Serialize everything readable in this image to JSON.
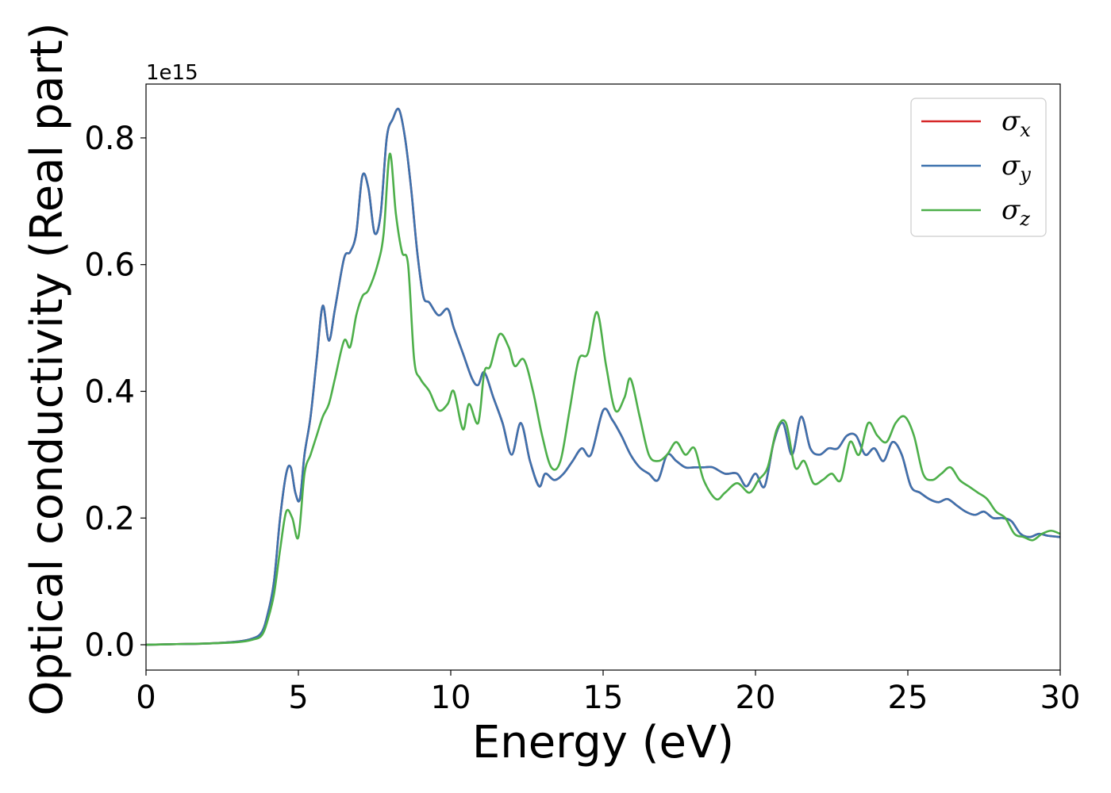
{
  "chart_data": {
    "type": "line",
    "title": "",
    "xlabel": "Energy (eV)",
    "ylabel": "Optical conductivity (Real part)",
    "y_offset_text": "1e15",
    "xlim": [
      0,
      30
    ],
    "ylim": [
      -0.04,
      0.885
    ],
    "xticks": [
      0,
      5,
      10,
      15,
      20,
      25,
      30
    ],
    "yticks": [
      0.0,
      0.2,
      0.4,
      0.6,
      0.8
    ],
    "xtick_labels": [
      "0",
      "5",
      "10",
      "15",
      "20",
      "25",
      "30"
    ],
    "ytick_labels": [
      "0.0",
      "0.2",
      "0.4",
      "0.6",
      "0.8"
    ],
    "grid": false,
    "legend_position": "top-right",
    "series": [
      {
        "name": "σx",
        "symbol": "σ",
        "subscript": "x",
        "color": "#d62728",
        "x": [
          0,
          1,
          2,
          3,
          3.5,
          3.8,
          4.0,
          4.2,
          4.4,
          4.6,
          4.75,
          4.9,
          5.05,
          5.2,
          5.4,
          5.6,
          5.8,
          6.0,
          6.2,
          6.5,
          6.7,
          6.9,
          7.1,
          7.3,
          7.5,
          7.7,
          7.9,
          8.1,
          8.3,
          8.5,
          8.7,
          8.9,
          9.1,
          9.3,
          9.6,
          9.9,
          10.1,
          10.4,
          10.7,
          10.9,
          11.1,
          11.4,
          11.7,
          12.0,
          12.3,
          12.6,
          12.9,
          13.1,
          13.4,
          13.7,
          14.0,
          14.3,
          14.6,
          15.0,
          15.3,
          15.6,
          15.9,
          16.2,
          16.5,
          16.8,
          17.1,
          17.4,
          17.7,
          18.0,
          18.3,
          18.6,
          19.0,
          19.4,
          19.7,
          20.0,
          20.3,
          20.6,
          20.9,
          21.2,
          21.5,
          21.8,
          22.1,
          22.4,
          22.7,
          23.0,
          23.3,
          23.6,
          23.9,
          24.2,
          24.5,
          24.8,
          25.1,
          25.4,
          25.7,
          26.0,
          26.3,
          26.6,
          26.9,
          27.2,
          27.5,
          27.8,
          28.1,
          28.4,
          28.7,
          29.0,
          29.3,
          29.6,
          30
        ],
        "y": [
          0,
          0.001,
          0.002,
          0.005,
          0.01,
          0.02,
          0.05,
          0.1,
          0.2,
          0.27,
          0.28,
          0.24,
          0.23,
          0.3,
          0.36,
          0.45,
          0.535,
          0.48,
          0.53,
          0.61,
          0.62,
          0.65,
          0.74,
          0.72,
          0.65,
          0.68,
          0.8,
          0.83,
          0.845,
          0.8,
          0.72,
          0.62,
          0.55,
          0.54,
          0.52,
          0.53,
          0.5,
          0.46,
          0.42,
          0.41,
          0.43,
          0.39,
          0.35,
          0.3,
          0.35,
          0.29,
          0.25,
          0.27,
          0.26,
          0.27,
          0.29,
          0.31,
          0.3,
          0.37,
          0.355,
          0.33,
          0.3,
          0.28,
          0.27,
          0.26,
          0.3,
          0.29,
          0.28,
          0.28,
          0.28,
          0.28,
          0.27,
          0.27,
          0.25,
          0.27,
          0.25,
          0.32,
          0.35,
          0.3,
          0.36,
          0.31,
          0.3,
          0.31,
          0.31,
          0.33,
          0.33,
          0.3,
          0.31,
          0.29,
          0.32,
          0.3,
          0.25,
          0.24,
          0.23,
          0.225,
          0.23,
          0.22,
          0.21,
          0.205,
          0.21,
          0.2,
          0.2,
          0.195,
          0.175,
          0.17,
          0.175,
          0.172,
          0.17
        ]
      },
      {
        "name": "σy",
        "symbol": "σ",
        "subscript": "y",
        "color": "#3d72ae",
        "x": [
          0,
          1,
          2,
          3,
          3.5,
          3.8,
          4.0,
          4.2,
          4.4,
          4.6,
          4.75,
          4.9,
          5.05,
          5.2,
          5.4,
          5.6,
          5.8,
          6.0,
          6.2,
          6.5,
          6.7,
          6.9,
          7.1,
          7.3,
          7.5,
          7.7,
          7.9,
          8.1,
          8.3,
          8.5,
          8.7,
          8.9,
          9.1,
          9.3,
          9.6,
          9.9,
          10.1,
          10.4,
          10.7,
          10.9,
          11.1,
          11.4,
          11.7,
          12.0,
          12.3,
          12.6,
          12.9,
          13.1,
          13.4,
          13.7,
          14.0,
          14.3,
          14.6,
          15.0,
          15.3,
          15.6,
          15.9,
          16.2,
          16.5,
          16.8,
          17.1,
          17.4,
          17.7,
          18.0,
          18.3,
          18.6,
          19.0,
          19.4,
          19.7,
          20.0,
          20.3,
          20.6,
          20.9,
          21.2,
          21.5,
          21.8,
          22.1,
          22.4,
          22.7,
          23.0,
          23.3,
          23.6,
          23.9,
          24.2,
          24.5,
          24.8,
          25.1,
          25.4,
          25.7,
          26.0,
          26.3,
          26.6,
          26.9,
          27.2,
          27.5,
          27.8,
          28.1,
          28.4,
          28.7,
          29.0,
          29.3,
          29.6,
          30
        ],
        "y": [
          0,
          0.001,
          0.002,
          0.005,
          0.01,
          0.02,
          0.05,
          0.1,
          0.2,
          0.27,
          0.28,
          0.24,
          0.23,
          0.3,
          0.36,
          0.45,
          0.535,
          0.48,
          0.53,
          0.61,
          0.62,
          0.65,
          0.74,
          0.72,
          0.65,
          0.68,
          0.8,
          0.83,
          0.845,
          0.8,
          0.72,
          0.62,
          0.55,
          0.54,
          0.52,
          0.53,
          0.5,
          0.46,
          0.42,
          0.41,
          0.43,
          0.39,
          0.35,
          0.3,
          0.35,
          0.29,
          0.25,
          0.27,
          0.26,
          0.27,
          0.29,
          0.31,
          0.3,
          0.37,
          0.355,
          0.33,
          0.3,
          0.28,
          0.27,
          0.26,
          0.3,
          0.29,
          0.28,
          0.28,
          0.28,
          0.28,
          0.27,
          0.27,
          0.25,
          0.27,
          0.25,
          0.32,
          0.35,
          0.3,
          0.36,
          0.31,
          0.3,
          0.31,
          0.31,
          0.33,
          0.33,
          0.3,
          0.31,
          0.29,
          0.32,
          0.3,
          0.25,
          0.24,
          0.23,
          0.225,
          0.23,
          0.22,
          0.21,
          0.205,
          0.21,
          0.2,
          0.2,
          0.195,
          0.175,
          0.17,
          0.175,
          0.172,
          0.17
        ]
      },
      {
        "name": "σz",
        "symbol": "σ",
        "subscript": "z",
        "color": "#4daf4a",
        "x": [
          0,
          1,
          2,
          3,
          3.5,
          3.8,
          4.0,
          4.2,
          4.4,
          4.6,
          4.8,
          5.0,
          5.2,
          5.4,
          5.6,
          5.8,
          6.0,
          6.2,
          6.5,
          6.7,
          6.9,
          7.1,
          7.3,
          7.6,
          7.8,
          8.0,
          8.2,
          8.4,
          8.6,
          8.8,
          9.0,
          9.3,
          9.6,
          9.9,
          10.1,
          10.4,
          10.6,
          10.9,
          11.1,
          11.3,
          11.6,
          11.9,
          12.1,
          12.4,
          12.7,
          13.0,
          13.3,
          13.6,
          13.9,
          14.2,
          14.5,
          14.8,
          15.1,
          15.4,
          15.7,
          15.9,
          16.2,
          16.5,
          16.8,
          17.1,
          17.4,
          17.7,
          18.0,
          18.3,
          18.7,
          19.0,
          19.4,
          19.8,
          20.1,
          20.4,
          20.7,
          21.0,
          21.3,
          21.6,
          21.9,
          22.2,
          22.5,
          22.8,
          23.1,
          23.4,
          23.7,
          24.0,
          24.3,
          24.6,
          24.9,
          25.2,
          25.5,
          25.8,
          26.1,
          26.4,
          26.7,
          27.0,
          27.3,
          27.6,
          27.9,
          28.2,
          28.5,
          28.8,
          29.1,
          29.4,
          29.7,
          30
        ],
        "y": [
          0,
          0.001,
          0.002,
          0.004,
          0.008,
          0.015,
          0.04,
          0.08,
          0.15,
          0.21,
          0.2,
          0.17,
          0.27,
          0.3,
          0.33,
          0.36,
          0.38,
          0.42,
          0.48,
          0.47,
          0.52,
          0.55,
          0.56,
          0.6,
          0.65,
          0.775,
          0.68,
          0.62,
          0.6,
          0.45,
          0.42,
          0.4,
          0.37,
          0.38,
          0.4,
          0.34,
          0.38,
          0.35,
          0.43,
          0.44,
          0.49,
          0.47,
          0.44,
          0.45,
          0.4,
          0.33,
          0.28,
          0.29,
          0.37,
          0.45,
          0.46,
          0.525,
          0.44,
          0.37,
          0.39,
          0.42,
          0.36,
          0.3,
          0.29,
          0.3,
          0.32,
          0.3,
          0.31,
          0.26,
          0.23,
          0.24,
          0.255,
          0.24,
          0.26,
          0.28,
          0.34,
          0.35,
          0.28,
          0.29,
          0.255,
          0.26,
          0.27,
          0.26,
          0.32,
          0.3,
          0.35,
          0.33,
          0.32,
          0.35,
          0.36,
          0.33,
          0.27,
          0.26,
          0.27,
          0.28,
          0.26,
          0.25,
          0.24,
          0.23,
          0.21,
          0.2,
          0.175,
          0.17,
          0.165,
          0.175,
          0.18,
          0.175
        ]
      }
    ]
  }
}
